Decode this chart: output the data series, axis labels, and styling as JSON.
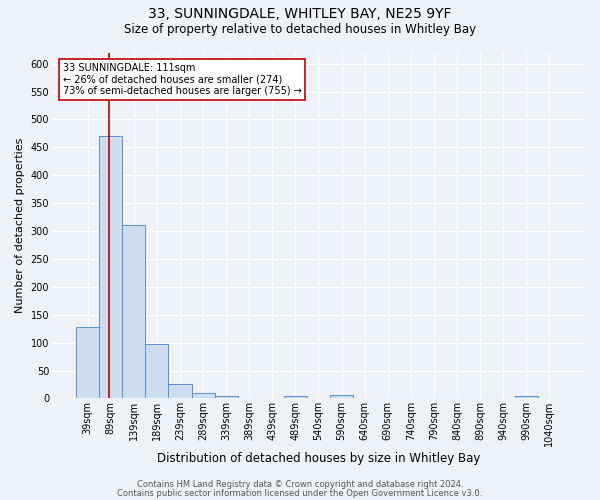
{
  "title1": "33, SUNNINGDALE, WHITLEY BAY, NE25 9YF",
  "title2": "Size of property relative to detached houses in Whitley Bay",
  "xlabel": "Distribution of detached houses by size in Whitley Bay",
  "ylabel": "Number of detached properties",
  "bar_labels": [
    "39sqm",
    "89sqm",
    "139sqm",
    "189sqm",
    "239sqm",
    "289sqm",
    "339sqm",
    "389sqm",
    "439sqm",
    "489sqm",
    "540sqm",
    "590sqm",
    "640sqm",
    "690sqm",
    "740sqm",
    "790sqm",
    "840sqm",
    "890sqm",
    "940sqm",
    "990sqm",
    "1040sqm"
  ],
  "bar_values": [
    128,
    470,
    310,
    97,
    26,
    10,
    5,
    1,
    0,
    5,
    0,
    7,
    0,
    0,
    0,
    0,
    0,
    0,
    0,
    5,
    0
  ],
  "bar_color": "#ccddf0",
  "bar_edge_color": "#5b8fc9",
  "ylim": [
    0,
    620
  ],
  "yticks": [
    0,
    50,
    100,
    150,
    200,
    250,
    300,
    350,
    400,
    450,
    500,
    550,
    600
  ],
  "vline_color": "#c00000",
  "annotation_text": "33 SUNNINGDALE: 111sqm\n← 26% of detached houses are smaller (274)\n73% of semi-detached houses are larger (755) →",
  "annotation_box_color": "white",
  "annotation_box_edge_color": "#c00000",
  "footer1": "Contains HM Land Registry data © Crown copyright and database right 2024.",
  "footer2": "Contains public sector information licensed under the Open Government Licence v3.0.",
  "bg_color": "#eef2f8",
  "grid_color": "white",
  "title1_fontsize": 10,
  "title2_fontsize": 8.5,
  "xlabel_fontsize": 8.5,
  "ylabel_fontsize": 8,
  "tick_fontsize": 7,
  "footer_fontsize": 6
}
